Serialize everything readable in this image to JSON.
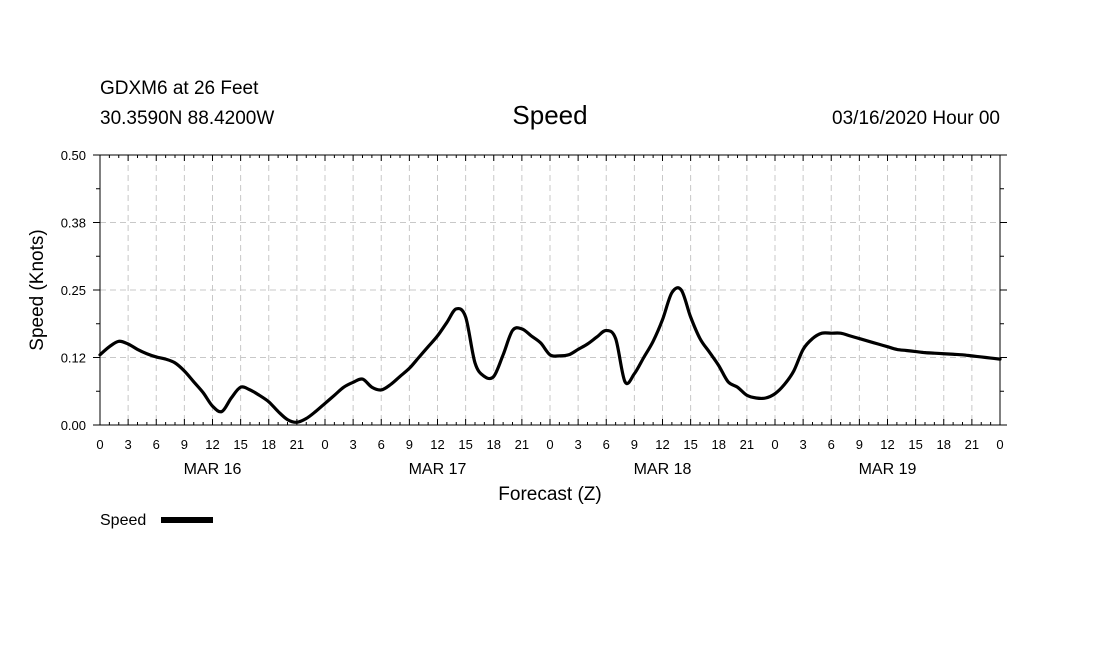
{
  "header": {
    "station": "GDXM6 at 26 Feet",
    "location": "30.3590N 88.4200W",
    "title": "Speed",
    "timestamp": "03/16/2020 Hour 00"
  },
  "chart_data": {
    "type": "line",
    "title": "Speed",
    "xlabel": "Forecast (Z)",
    "ylabel": "Speed (Knots)",
    "xlim": [
      0,
      96
    ],
    "ylim": [
      0,
      0.5
    ],
    "grid": true,
    "y_ticks": [
      0.0,
      0.125,
      0.25,
      0.375,
      0.5
    ],
    "y_tick_labels": [
      "0.00",
      "0.12",
      "0.25",
      "0.38",
      "0.50"
    ],
    "x_ticks": [
      0,
      3,
      6,
      9,
      12,
      15,
      18,
      21,
      24,
      27,
      30,
      33,
      36,
      39,
      42,
      45,
      48,
      51,
      54,
      57,
      60,
      63,
      66,
      69,
      72,
      75,
      78,
      81,
      84,
      87,
      90,
      93,
      96
    ],
    "x_tick_labels": [
      "0",
      "3",
      "6",
      "9",
      "12",
      "15",
      "18",
      "21",
      "0",
      "3",
      "6",
      "9",
      "12",
      "15",
      "18",
      "21",
      "0",
      "3",
      "6",
      "9",
      "12",
      "15",
      "18",
      "21",
      "0",
      "3",
      "6",
      "9",
      "12",
      "15",
      "18",
      "21",
      "0"
    ],
    "day_labels": [
      {
        "hour": 12,
        "label": "MAR 16"
      },
      {
        "hour": 36,
        "label": "MAR 17"
      },
      {
        "hour": 60,
        "label": "MAR 18"
      },
      {
        "hour": 84,
        "label": "MAR 19"
      }
    ],
    "legend": {
      "placement": "bottom-left"
    },
    "series": [
      {
        "name": "Speed",
        "color": "#000000",
        "x": [
          0,
          1,
          2,
          3,
          4,
          5,
          6,
          7,
          8,
          9,
          10,
          11,
          12,
          13,
          14,
          15,
          16,
          17,
          18,
          19,
          20,
          21,
          22,
          23,
          24,
          25,
          26,
          27,
          28,
          29,
          30,
          31,
          32,
          33,
          34,
          35,
          36,
          37,
          38,
          39,
          40,
          41,
          42,
          43,
          44,
          45,
          46,
          47,
          48,
          49,
          50,
          51,
          52,
          53,
          54,
          55,
          56,
          57,
          58,
          59,
          60,
          61,
          62,
          63,
          64,
          65,
          66,
          67,
          68,
          69,
          70,
          71,
          72,
          73,
          74,
          75,
          76,
          77,
          78,
          79,
          80,
          81,
          82,
          83,
          84,
          85,
          86,
          87,
          88,
          89,
          90,
          91,
          92,
          93,
          94,
          95,
          96
        ],
        "values": [
          0.13,
          0.145,
          0.155,
          0.15,
          0.14,
          0.132,
          0.126,
          0.122,
          0.115,
          0.1,
          0.08,
          0.06,
          0.035,
          0.025,
          0.05,
          0.07,
          0.065,
          0.055,
          0.043,
          0.025,
          0.01,
          0.005,
          0.012,
          0.025,
          0.04,
          0.055,
          0.07,
          0.079,
          0.085,
          0.07,
          0.065,
          0.075,
          0.09,
          0.105,
          0.125,
          0.145,
          0.165,
          0.19,
          0.215,
          0.2,
          0.115,
          0.09,
          0.09,
          0.13,
          0.175,
          0.178,
          0.165,
          0.152,
          0.13,
          0.128,
          0.13,
          0.14,
          0.15,
          0.163,
          0.175,
          0.16,
          0.08,
          0.095,
          0.125,
          0.155,
          0.195,
          0.245,
          0.25,
          0.2,
          0.16,
          0.135,
          0.11,
          0.08,
          0.07,
          0.055,
          0.05,
          0.05,
          0.058,
          0.075,
          0.1,
          0.14,
          0.16,
          0.17,
          0.17,
          0.17,
          0.165,
          0.16,
          0.155,
          0.15,
          0.145,
          0.14,
          0.138,
          0.136,
          0.134,
          0.133,
          0.132,
          0.131,
          0.13,
          0.128,
          0.126,
          0.124,
          0.122
        ]
      }
    ]
  }
}
